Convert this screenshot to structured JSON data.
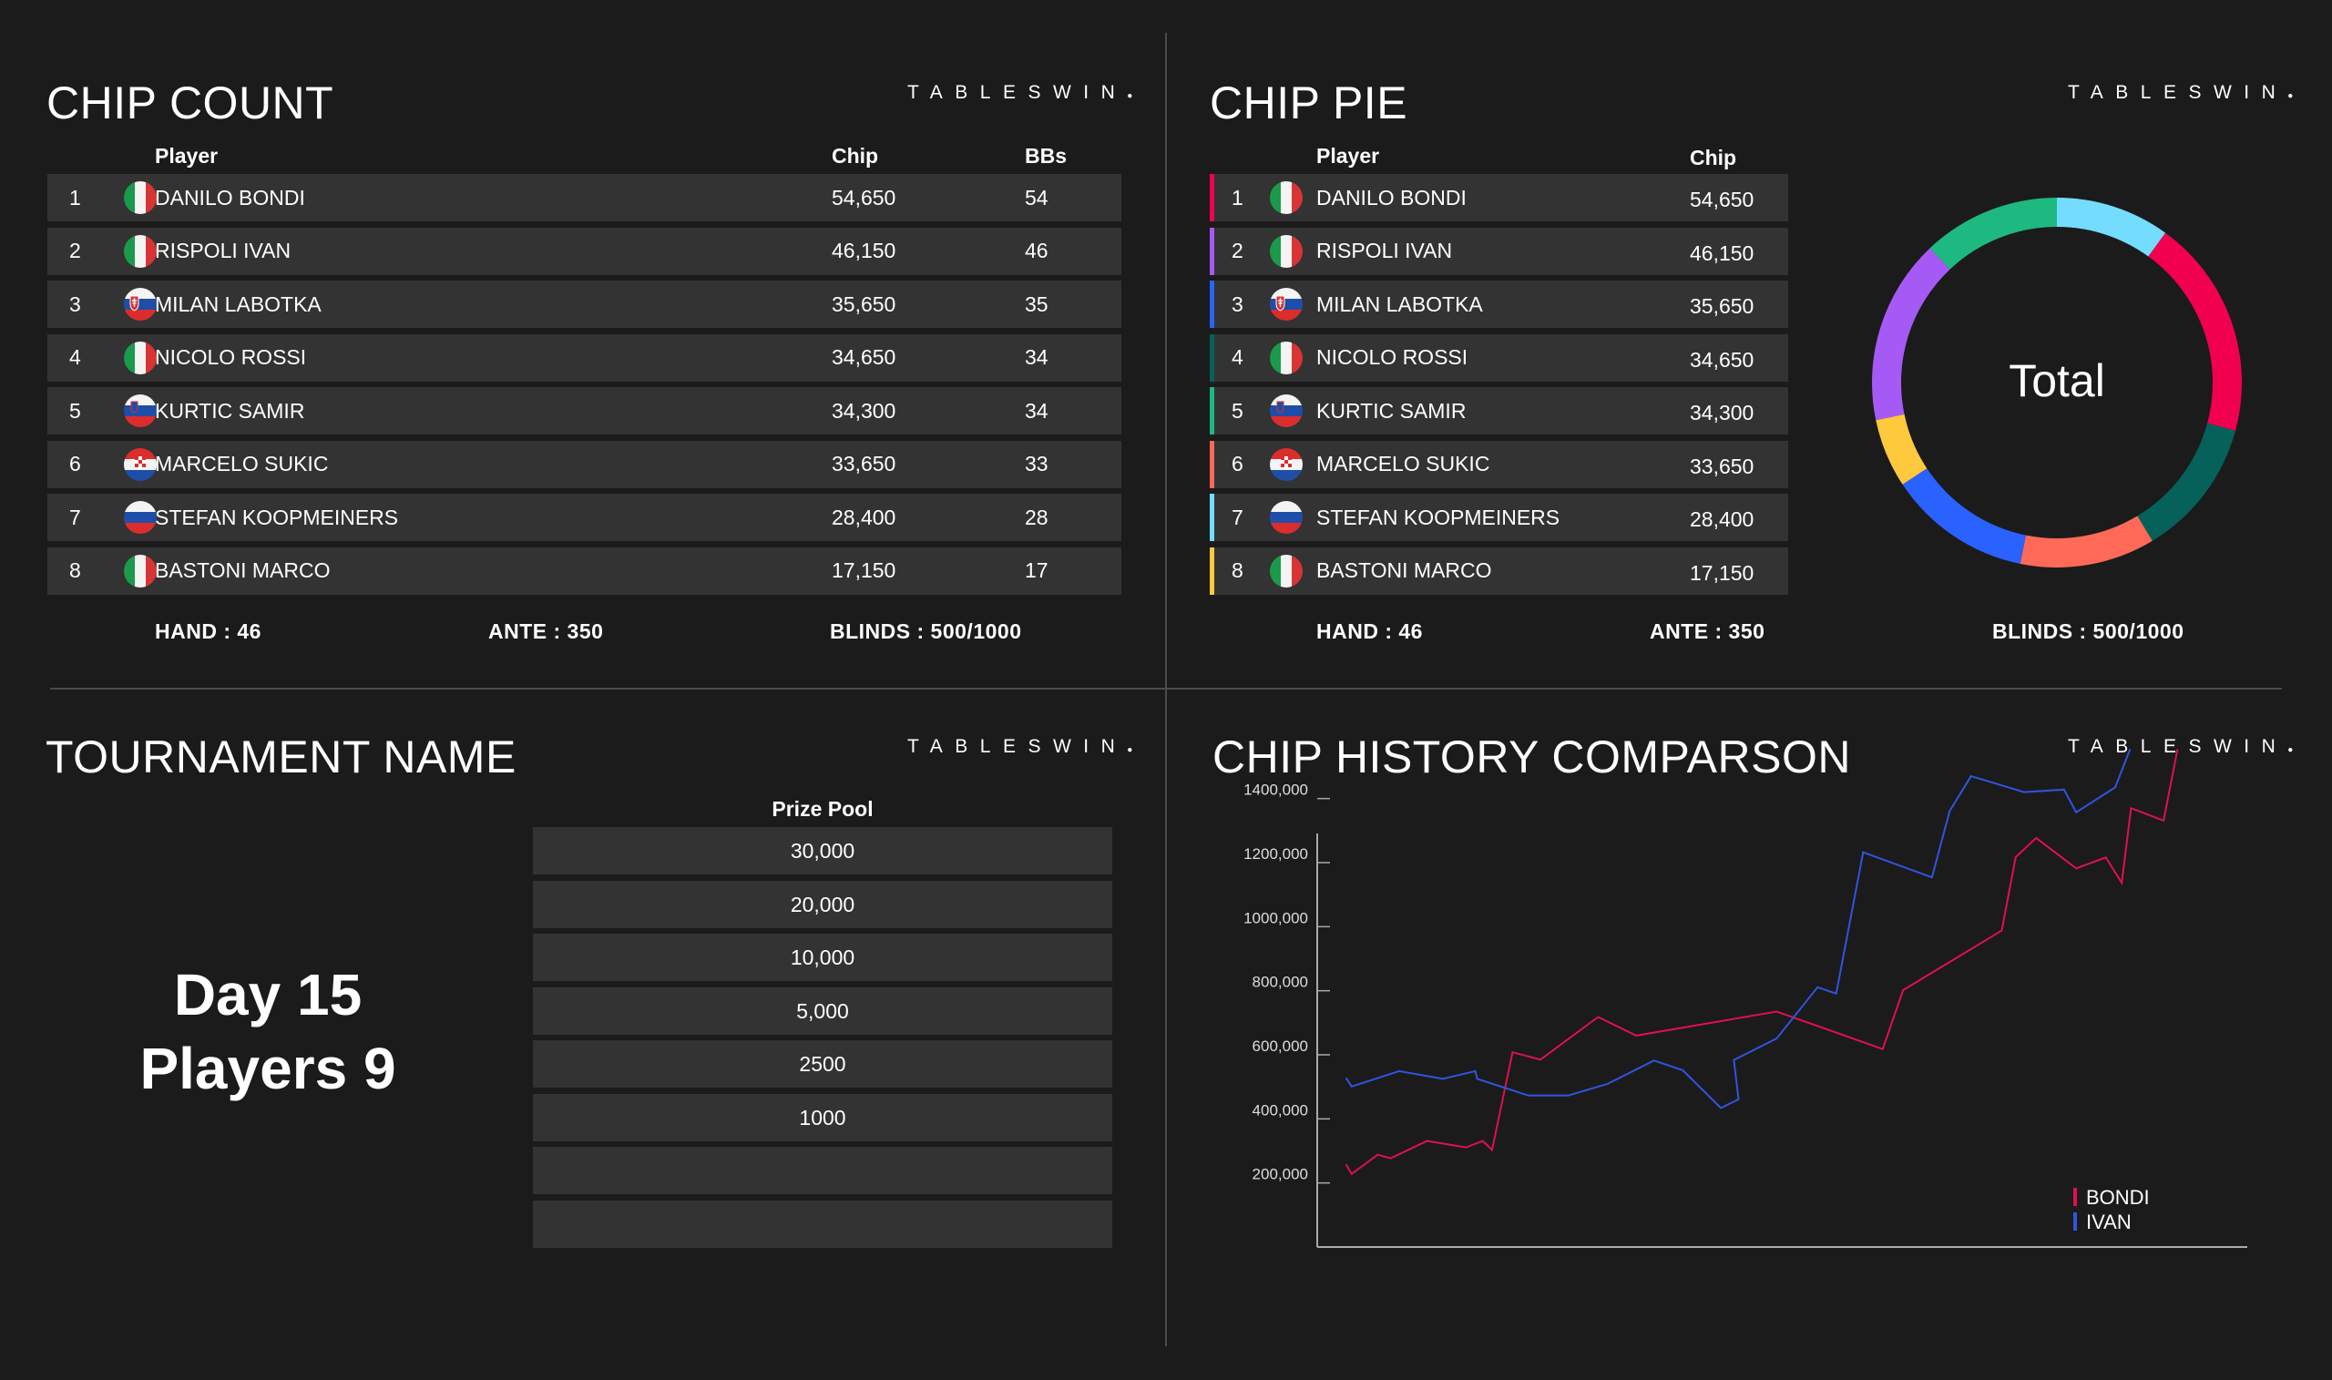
{
  "brand": "TABLESWIN",
  "chip_count": {
    "title": "CHIP COUNT",
    "headers": {
      "player": "Player",
      "chip": "Chip",
      "bbs": "BBs"
    },
    "footer": {
      "hand": "HAND : 46",
      "ante": "ANTE : 350",
      "blinds": "BLINDS : 500/1000"
    }
  },
  "chip_pie": {
    "title": "CHIP PIE",
    "headers": {
      "player": "Player",
      "chip": "Chip"
    },
    "center_label": "Total",
    "footer": {
      "hand": "HAND : 46",
      "ante": "ANTE : 350",
      "blinds": "BLINDS : 500/1000"
    },
    "slice_order": [
      7,
      1,
      4,
      6,
      3,
      8,
      2,
      5
    ]
  },
  "players": [
    {
      "rank": "1",
      "name": "DANILO BONDI",
      "flag": "italy",
      "chip": "54,650",
      "chip_value": 54650,
      "bbs": "54",
      "color": "#f0004f"
    },
    {
      "rank": "2",
      "name": "RISPOLI IVAN",
      "flag": "italy",
      "chip": "46,150",
      "chip_value": 46150,
      "bbs": "46",
      "color": "#a65af5"
    },
    {
      "rank": "3",
      "name": "MILAN LABOTKA",
      "flag": "slovakia",
      "chip": "35,650",
      "chip_value": 35650,
      "bbs": "35",
      "color": "#2a62ff"
    },
    {
      "rank": "4",
      "name": "NICOLO ROSSI",
      "flag": "italy",
      "chip": "34,650",
      "chip_value": 34650,
      "bbs": "34",
      "color": "#05615a"
    },
    {
      "rank": "5",
      "name": "KURTIC SAMIR",
      "flag": "slovenia",
      "chip": "34,300",
      "chip_value": 34300,
      "bbs": "34",
      "color": "#1eb981"
    },
    {
      "rank": "6",
      "name": "MARCELO SUKIC",
      "flag": "croatia",
      "chip": "33,650",
      "chip_value": 33650,
      "bbs": "33",
      "color": "#ff6a58"
    },
    {
      "rank": "7",
      "name": "STEFAN KOOPMEINERS",
      "flag": "russia",
      "chip": "28,400",
      "chip_value": 28400,
      "bbs": "28",
      "color": "#73dcff"
    },
    {
      "rank": "8",
      "name": "BASTONI MARCO",
      "flag": "italy",
      "chip": "17,150",
      "chip_value": 17150,
      "bbs": "17",
      "color": "#ffc93e"
    }
  ],
  "tournament": {
    "title": "TOURNAMENT NAME",
    "day": "Day 15",
    "players": "Players 9",
    "prize_header": "Prize Pool",
    "prizes": [
      "30,000",
      "20,000",
      "10,000",
      "5,000",
      "2500",
      "1000",
      "",
      ""
    ]
  },
  "chart_data": {
    "type": "line",
    "title": "CHIP HISTORY COMPARSON",
    "xlabel": "",
    "ylabel": "",
    "xlim": [
      0,
      100
    ],
    "ylim": [
      0,
      1600000
    ],
    "yticks": [
      200000,
      400000,
      600000,
      800000,
      1000000,
      1200000,
      1400000
    ],
    "ytick_labels": [
      "200,000",
      "400,000",
      "600,000",
      "800,000",
      "1000,000",
      "1200,000",
      "1400,000"
    ],
    "legend": "bottom-right",
    "series": [
      {
        "name": "BONDI",
        "color": "#e0104f",
        "points": [
          [
            3.1,
            258000
          ],
          [
            3.7,
            228000
          ],
          [
            6.5,
            288000
          ],
          [
            7.9,
            277000
          ],
          [
            11.8,
            331000
          ],
          [
            16.0,
            311000
          ],
          [
            17.8,
            331000
          ],
          [
            18.8,
            303000
          ],
          [
            21.0,
            608000
          ],
          [
            24.0,
            585000
          ],
          [
            30.2,
            718000
          ],
          [
            34.3,
            660000
          ],
          [
            49.4,
            735000
          ],
          [
            60.8,
            618000
          ],
          [
            63.0,
            802000
          ],
          [
            73.6,
            988000
          ],
          [
            75.1,
            1217000
          ],
          [
            77.3,
            1277000
          ],
          [
            81.6,
            1182000
          ],
          [
            84.8,
            1216000
          ],
          [
            86.5,
            1137000
          ],
          [
            87.5,
            1370000
          ],
          [
            91.0,
            1331000
          ],
          [
            92.5,
            1554000
          ]
        ]
      },
      {
        "name": "IVAN",
        "color": "#2f55e0",
        "points": [
          [
            3.1,
            528000
          ],
          [
            3.7,
            501000
          ],
          [
            8.8,
            549000
          ],
          [
            13.5,
            525000
          ],
          [
            17.0,
            549000
          ],
          [
            17.2,
            525000
          ],
          [
            22.7,
            473000
          ],
          [
            27.0,
            473000
          ],
          [
            31.2,
            509000
          ],
          [
            36.2,
            582000
          ],
          [
            39.3,
            552000
          ],
          [
            43.4,
            434000
          ],
          [
            45.3,
            461000
          ],
          [
            44.8,
            584000
          ],
          [
            49.4,
            651000
          ],
          [
            53.8,
            811000
          ],
          [
            55.8,
            791000
          ],
          [
            58.7,
            1232000
          ],
          [
            66.1,
            1154000
          ],
          [
            68.0,
            1361000
          ],
          [
            70.3,
            1470000
          ],
          [
            76.0,
            1420000
          ],
          [
            80.3,
            1428000
          ],
          [
            81.6,
            1357000
          ],
          [
            85.8,
            1435000
          ],
          [
            87.4,
            1554000
          ]
        ]
      }
    ]
  }
}
